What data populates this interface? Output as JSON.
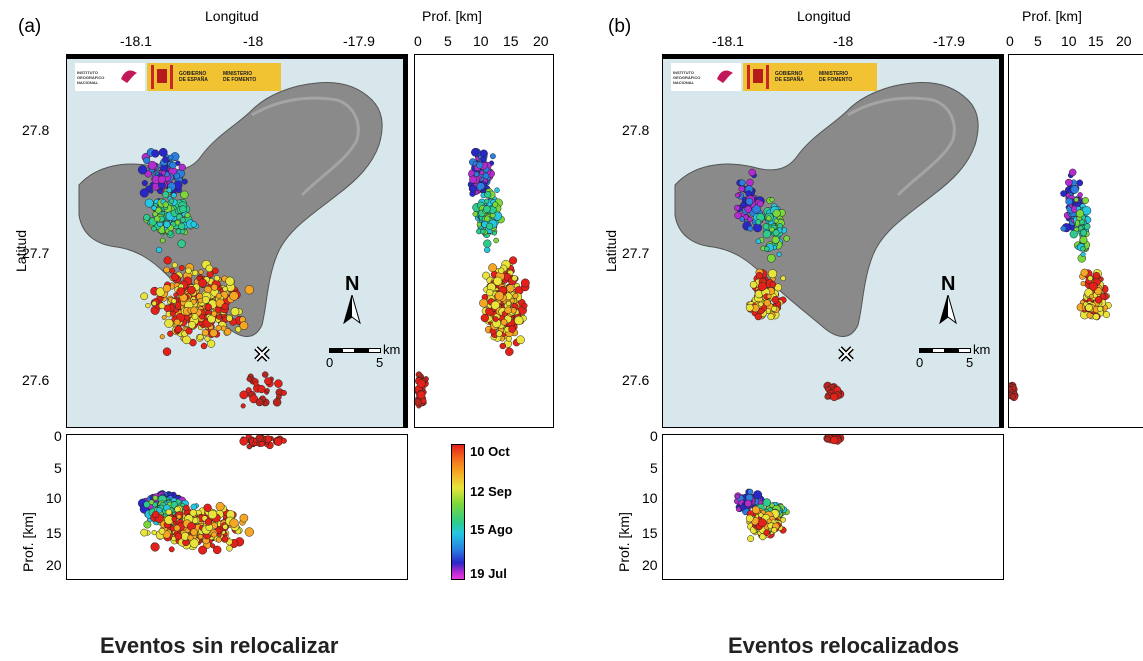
{
  "panels": [
    {
      "letter": "(a)",
      "caption": "Eventos sin relocalizar",
      "map": {
        "xlabel": "Longitud",
        "ylabel": "Latitud",
        "x_ticks": [
          "-18.1",
          "-18",
          "-17.9"
        ],
        "y_ticks": [
          "27.8",
          "27.7",
          "27.6"
        ]
      },
      "depth_right": {
        "xlabel": "Prof. [km]",
        "x_ticks": [
          "0",
          "5",
          "10",
          "15",
          "20"
        ]
      },
      "depth_bottom": {
        "ylabel": "Prof. [km]",
        "y_ticks": [
          "0",
          "5",
          "10",
          "15",
          "20"
        ]
      },
      "scalebar": {
        "ticks": [
          "0",
          "5"
        ],
        "unit": "km"
      },
      "north_label": "N"
    },
    {
      "letter": "(b)",
      "caption": "Eventos relocalizados",
      "map": {
        "xlabel": "Longitud",
        "ylabel": "Latitud",
        "x_ticks": [
          "-18.1",
          "-18",
          "-17.9"
        ],
        "y_ticks": [
          "27.8",
          "27.7",
          "27.6"
        ]
      },
      "depth_right": {
        "xlabel": "Prof. [km]",
        "x_ticks": [
          "0",
          "5",
          "10",
          "15",
          "20"
        ]
      },
      "depth_bottom": {
        "ylabel": "Prof. [km]",
        "y_ticks": [
          "0",
          "5",
          "10",
          "15",
          "20"
        ]
      },
      "scalebar": {
        "ticks": [
          "0",
          "5"
        ],
        "unit": "km"
      },
      "north_label": "N"
    }
  ],
  "logos": {
    "ign_text": [
      "INSTITUTO",
      "GEOGRÁFICO",
      "NACIONAL"
    ],
    "gov_text": [
      "GOBIERNO",
      "DE ESPAÑA"
    ],
    "min_text": [
      "MINISTERIO",
      "DE FOMENTO"
    ]
  },
  "colorbar": {
    "labels": [
      "10 Oct",
      "12 Sep",
      "15 Ago",
      "19 Jul"
    ],
    "colors": [
      "#e3201a",
      "#f5a623",
      "#e8e43a",
      "#7bd83a",
      "#2dcb8c",
      "#26c7e3",
      "#2a7fe0",
      "#2a27c8",
      "#b42bd0",
      "#e83adf"
    ]
  },
  "chart_data": [
    {
      "type": "scatter",
      "title": "(a)",
      "xlabel": "Longitud",
      "ylabel": "Latitud",
      "xlim": [
        -18.15,
        -17.85
      ],
      "ylim": [
        27.56,
        27.86
      ],
      "color_scale": {
        "name": "date",
        "range_labels": [
          "19 Jul",
          "10 Oct"
        ]
      },
      "clusters": [
        {
          "color_label": "19 Jul - 15 Ago",
          "lon": [
            -18.09,
            -18.04
          ],
          "lat": [
            27.74,
            27.79
          ],
          "depth_km": [
            8,
            13
          ]
        },
        {
          "color_label": "15 Ago - 12 Sep",
          "lon": [
            -18.09,
            -18.03
          ],
          "lat": [
            27.7,
            27.76
          ],
          "depth_km": [
            9,
            14
          ]
        },
        {
          "color_label": "12 Sep - 10 Oct",
          "lon": [
            -18.09,
            -17.98
          ],
          "lat": [
            27.62,
            27.7
          ],
          "depth_km": [
            10,
            18
          ]
        },
        {
          "color_label": "10 Oct",
          "lon": [
            -18.01,
            -17.95
          ],
          "lat": [
            27.57,
            27.61
          ],
          "depth_km": [
            0,
            2
          ]
        }
      ]
    },
    {
      "type": "scatter",
      "title": "(b)",
      "xlabel": "Longitud",
      "ylabel": "Latitud",
      "xlim": [
        -18.15,
        -17.85
      ],
      "ylim": [
        27.56,
        27.86
      ],
      "color_scale": {
        "name": "date",
        "range_labels": [
          "19 Jul",
          "10 Oct"
        ]
      },
      "clusters": [
        {
          "color_label": "19 Jul - 15 Ago",
          "lon": [
            -18.09,
            -18.06
          ],
          "lat": [
            27.71,
            27.77
          ],
          "depth_km": [
            8,
            12
          ]
        },
        {
          "color_label": "15 Ago - 12 Sep",
          "lon": [
            -18.07,
            -18.04
          ],
          "lat": [
            27.69,
            27.75
          ],
          "depth_km": [
            10,
            13
          ]
        },
        {
          "color_label": "12 Sep - 10 Oct",
          "lon": [
            -18.08,
            -18.04
          ],
          "lat": [
            27.64,
            27.69
          ],
          "depth_km": [
            11,
            16
          ]
        },
        {
          "color_label": "10 Oct",
          "lon": [
            -18.01,
            -17.99
          ],
          "lat": [
            27.58,
            27.6
          ],
          "depth_km": [
            0,
            1
          ]
        }
      ]
    }
  ]
}
